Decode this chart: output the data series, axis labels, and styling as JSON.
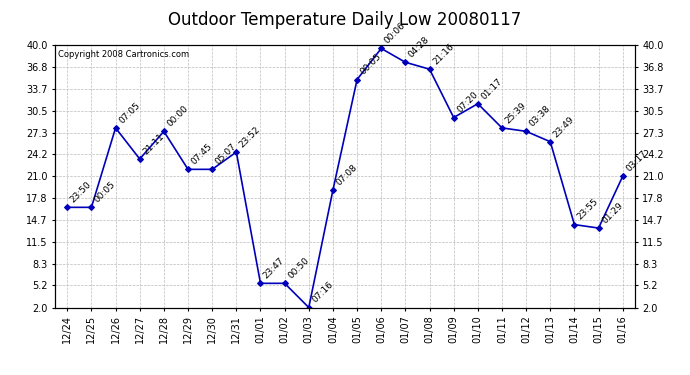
{
  "title": "Outdoor Temperature Daily Low 20080117",
  "copyright": "Copyright 2008 Cartronics.com",
  "x_labels": [
    "12/24",
    "12/25",
    "12/26",
    "12/27",
    "12/28",
    "12/29",
    "12/30",
    "12/31",
    "01/01",
    "01/02",
    "01/03",
    "01/04",
    "01/05",
    "01/06",
    "01/07",
    "01/08",
    "01/09",
    "01/10",
    "01/11",
    "01/12",
    "01/13",
    "01/14",
    "01/15",
    "01/16"
  ],
  "y_values": [
    16.5,
    16.5,
    28.0,
    23.5,
    27.5,
    22.0,
    22.0,
    24.5,
    5.5,
    5.5,
    2.0,
    19.0,
    35.0,
    39.5,
    37.5,
    36.5,
    29.5,
    31.5,
    28.0,
    27.5,
    26.0,
    14.0,
    13.5,
    21.0
  ],
  "point_labels": [
    "23:50",
    "00:05",
    "07:05",
    "21:11",
    "00:00",
    "07:45",
    "05:07",
    "23:52",
    "23:47",
    "00:50",
    "07:16",
    "07:08",
    "00:05",
    "00:06",
    "04:28",
    "21:16",
    "07:20",
    "01:17",
    "25:39",
    "03:38",
    "23:49",
    "23:55",
    "01:29",
    "03:17"
  ],
  "yticks": [
    2.0,
    5.2,
    8.3,
    11.5,
    14.7,
    17.8,
    21.0,
    24.2,
    27.3,
    30.5,
    33.7,
    36.8,
    40.0
  ],
  "ymin": 2.0,
  "ymax": 40.0,
  "line_color": "#0000bb",
  "marker_color": "#0000bb",
  "bg_color": "#ffffff",
  "grid_color": "#bbbbbb",
  "title_fontsize": 12,
  "tick_fontsize": 7,
  "annotation_fontsize": 6.5
}
